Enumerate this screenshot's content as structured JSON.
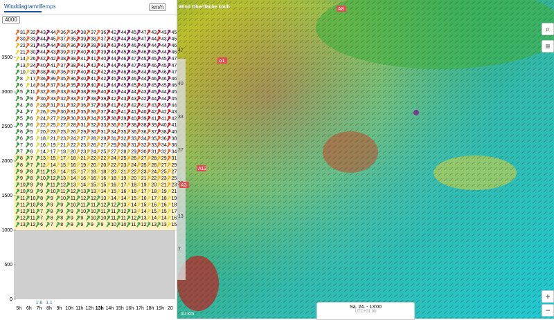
{
  "tabs": [
    "Winddiagramm",
    "Temps"
  ],
  "unit": "km/h",
  "altitude_select": "4000",
  "chart_data": {
    "type": "wind-grid",
    "ylim": [
      0,
      4000
    ],
    "yticks": [
      0,
      500,
      1000,
      1500,
      2000,
      2500,
      3000,
      3500
    ],
    "categories": [
      "5h",
      "6h",
      "7h",
      "8h",
      "9h",
      "10h",
      "11h",
      "12h",
      "13h",
      "14h",
      "15h",
      "16h",
      "17h",
      "18h",
      "19h",
      "20"
    ],
    "top_labels": [
      null,
      null,
      "1.6",
      "1.1",
      null,
      null,
      null,
      null,
      null,
      null,
      null,
      null,
      null,
      null,
      null,
      null
    ],
    "rows": [
      [
        31,
        32,
        43,
        44,
        36,
        34,
        38,
        37,
        36,
        42,
        44,
        45,
        47,
        43,
        43,
        45
      ],
      [
        30,
        33,
        44,
        45,
        37,
        35,
        39,
        38,
        37,
        43,
        44,
        46,
        47,
        44,
        43,
        45
      ],
      [
        22,
        31,
        45,
        44,
        38,
        36,
        39,
        39,
        38,
        43,
        45,
        46,
        46,
        44,
        44,
        46
      ],
      [
        21,
        30,
        44,
        43,
        39,
        37,
        40,
        40,
        39,
        44,
        45,
        46,
        46,
        45,
        44,
        46
      ],
      [
        14,
        26,
        42,
        42,
        38,
        38,
        41,
        41,
        40,
        44,
        46,
        47,
        45,
        45,
        45,
        47
      ],
      [
        13,
        24,
        40,
        41,
        37,
        38,
        41,
        42,
        41,
        44,
        46,
        47,
        45,
        46,
        45,
        47
      ],
      [
        10,
        20,
        38,
        40,
        36,
        37,
        40,
        42,
        42,
        45,
        46,
        46,
        44,
        46,
        46,
        47
      ],
      [
        8,
        17,
        36,
        39,
        35,
        36,
        40,
        41,
        42,
        45,
        45,
        46,
        44,
        46,
        46,
        46
      ],
      [
        6,
        14,
        34,
        37,
        34,
        35,
        39,
        40,
        41,
        44,
        45,
        45,
        43,
        45,
        45,
        46
      ],
      [
        5,
        11,
        32,
        35,
        33,
        34,
        38,
        39,
        40,
        43,
        44,
        44,
        43,
        45,
        44,
        45
      ],
      [
        5,
        9,
        30,
        33,
        32,
        33,
        37,
        38,
        39,
        42,
        43,
        43,
        42,
        44,
        44,
        45
      ],
      [
        4,
        8,
        28,
        31,
        31,
        32,
        36,
        37,
        38,
        41,
        42,
        42,
        41,
        43,
        43,
        44
      ],
      [
        4,
        7,
        26,
        29,
        30,
        31,
        35,
        36,
        37,
        40,
        41,
        41,
        40,
        42,
        42,
        43
      ],
      [
        5,
        6,
        24,
        27,
        29,
        30,
        33,
        34,
        35,
        38,
        39,
        40,
        39,
        41,
        41,
        42
      ],
      [
        5,
        6,
        22,
        25,
        27,
        28,
        31,
        32,
        33,
        36,
        37,
        38,
        38,
        39,
        40,
        41
      ],
      [
        6,
        5,
        20,
        23,
        25,
        26,
        29,
        30,
        31,
        34,
        35,
        36,
        36,
        37,
        38,
        40
      ],
      [
        6,
        5,
        18,
        21,
        23,
        24,
        27,
        28,
        29,
        31,
        32,
        33,
        34,
        35,
        36,
        38
      ],
      [
        7,
        6,
        16,
        19,
        21,
        22,
        25,
        26,
        27,
        29,
        30,
        31,
        32,
        33,
        34,
        36
      ],
      [
        7,
        6,
        14,
        17,
        19,
        20,
        23,
        24,
        25,
        27,
        28,
        29,
        30,
        31,
        32,
        34
      ],
      [
        8,
        7,
        13,
        15,
        17,
        18,
        21,
        22,
        22,
        24,
        25,
        26,
        27,
        28,
        29,
        31
      ],
      [
        8,
        7,
        12,
        14,
        15,
        16,
        19,
        20,
        20,
        22,
        23,
        24,
        25,
        26,
        27,
        29
      ],
      [
        9,
        8,
        11,
        13,
        14,
        15,
        17,
        18,
        18,
        20,
        21,
        22,
        23,
        24,
        25,
        27
      ],
      [
        9,
        8,
        10,
        12,
        13,
        14,
        16,
        16,
        16,
        18,
        19,
        20,
        21,
        22,
        23,
        25
      ],
      [
        10,
        9,
        9,
        11,
        12,
        13,
        14,
        15,
        15,
        16,
        17,
        18,
        19,
        20,
        21,
        23
      ],
      [
        10,
        9,
        9,
        10,
        11,
        12,
        13,
        13,
        14,
        15,
        16,
        16,
        17,
        18,
        19,
        21
      ],
      [
        11,
        10,
        8,
        9,
        10,
        11,
        12,
        12,
        13,
        14,
        14,
        15,
        16,
        17,
        18,
        19
      ],
      [
        11,
        10,
        8,
        9,
        9,
        10,
        11,
        11,
        12,
        12,
        13,
        14,
        15,
        16,
        16,
        18
      ],
      [
        12,
        11,
        7,
        8,
        9,
        9,
        10,
        10,
        11,
        11,
        12,
        13,
        14,
        15,
        15,
        17
      ],
      [
        12,
        11,
        7,
        8,
        8,
        9,
        9,
        10,
        10,
        11,
        11,
        12,
        13,
        14,
        14,
        16
      ],
      [
        13,
        12,
        6,
        7,
        8,
        8,
        9,
        9,
        9,
        10,
        10,
        11,
        12,
        13,
        13,
        15
      ]
    ]
  },
  "map": {
    "legend_title": "Wind Oberfläche km/h",
    "legend_ticks": [
      47,
      40,
      33,
      27,
      20,
      13,
      7
    ],
    "labels": [
      "A1",
      "A12",
      "A3",
      "A8"
    ],
    "scale": "10 km",
    "time": "Sa. 24. - 13:00",
    "time_sub": "UTC+01:00"
  }
}
